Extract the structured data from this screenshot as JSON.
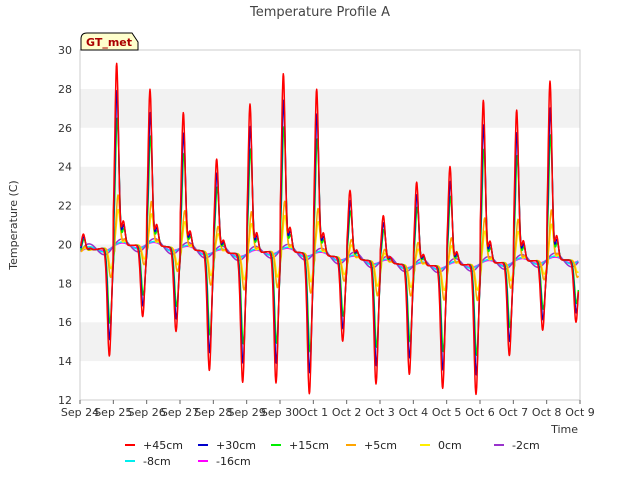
{
  "chart_data": {
    "type": "line",
    "title": "Temperature Profile A",
    "xlabel": "Time",
    "ylabel": "Temperature (C)",
    "ylim": [
      12,
      30
    ],
    "yticks": [
      12,
      14,
      16,
      18,
      20,
      22,
      24,
      26,
      28,
      30
    ],
    "xlim": [
      "2023-09-24",
      "2023-10-09"
    ],
    "xtick_labels": [
      "Sep 24",
      "Sep 25",
      "Sep 26",
      "Sep 27",
      "Sep 28",
      "Sep 29",
      "Sep 30",
      "Oct 1",
      "Oct 2",
      "Oct 3",
      "Oct 4",
      "Oct 5",
      "Oct 6",
      "Oct 7",
      "Oct 8",
      "Oct 9"
    ],
    "grid": "horizontal alternating bands",
    "legend_placement": "bottom",
    "annotation": "GT_met",
    "series": [
      {
        "name": "+45cm",
        "color": "#ff0000",
        "amp": 1.0
      },
      {
        "name": "+30cm",
        "color": "#0000cc",
        "amp": 0.85
      },
      {
        "name": "+15cm",
        "color": "#00ee00",
        "amp": 0.7
      },
      {
        "name": "+5cm",
        "color": "#ffa500",
        "amp": 0.28
      },
      {
        "name": "0cm",
        "color": "#ffee00",
        "amp": 0.2
      },
      {
        "name": "-2cm",
        "color": "#9933cc",
        "amp": 0.07
      },
      {
        "name": "-8cm",
        "color": "#00eeee",
        "amp": 0.04
      },
      {
        "name": "-16cm",
        "color": "#ff00ff",
        "amp": 0.03
      }
    ],
    "daily_cycle": {
      "dates": [
        "Sep 24",
        "Sep 25",
        "Sep 26",
        "Sep 27",
        "Sep 28",
        "Sep 29",
        "Sep 30",
        "Oct 1",
        "Oct 2",
        "Oct 3",
        "Oct 4",
        "Oct 5",
        "Oct 6",
        "Oct 7",
        "Oct 8"
      ],
      "mean": [
        19.6,
        19.9,
        20.0,
        19.8,
        19.6,
        19.5,
        19.7,
        19.5,
        19.3,
        19.1,
        18.9,
        18.9,
        19.0,
        19.1,
        19.2
      ],
      "max_45cm": [
        20.5,
        29.3,
        28.0,
        26.8,
        24.4,
        27.2,
        28.8,
        28.0,
        22.8,
        21.5,
        23.2,
        24.0,
        27.4,
        26.9,
        28.4
      ],
      "min_45cm": [
        14.0,
        16.2,
        15.7,
        13.7,
        13.0,
        12.7,
        12.5,
        15.2,
        13.0,
        13.5,
        12.6,
        12.2,
        14.2,
        15.5,
        16.0
      ]
    }
  }
}
